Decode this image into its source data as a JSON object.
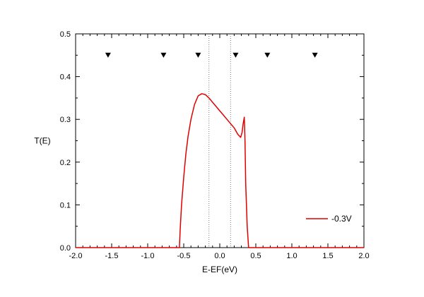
{
  "chart_data": {
    "type": "line",
    "xlabel": "E-EF(eV)",
    "ylabel": "T(E)",
    "xlim": [
      -2.0,
      2.0
    ],
    "ylim": [
      0.0,
      0.5
    ],
    "x_ticks": [
      "-2.0",
      "-1.5",
      "-1.0",
      "-0.5",
      "0.0",
      "0.5",
      "1.0",
      "1.5",
      "2.0"
    ],
    "y_ticks": [
      "0.0",
      "0.1",
      "0.2",
      "0.3",
      "0.4",
      "0.5"
    ],
    "series": [
      {
        "name": "-0.3V",
        "color": "#e00000",
        "x": [
          -2.0,
          -0.56,
          -0.55,
          -0.53,
          -0.5,
          -0.47,
          -0.44,
          -0.4,
          -0.35,
          -0.3,
          -0.25,
          -0.2,
          -0.15,
          -0.1,
          -0.05,
          0.0,
          0.05,
          0.1,
          0.15,
          0.2,
          0.25,
          0.29,
          0.31,
          0.325,
          0.34,
          0.35,
          0.36,
          0.38,
          0.4,
          2.0
        ],
        "y": [
          0.0,
          0.0,
          0.04,
          0.1,
          0.165,
          0.22,
          0.26,
          0.3,
          0.335,
          0.355,
          0.36,
          0.358,
          0.35,
          0.34,
          0.33,
          0.32,
          0.31,
          0.3,
          0.29,
          0.28,
          0.265,
          0.258,
          0.27,
          0.29,
          0.305,
          0.25,
          0.15,
          0.05,
          0.0,
          0.0
        ]
      }
    ],
    "markers": {
      "symbol": "down-triangle",
      "x": [
        -1.55,
        -0.78,
        -0.3,
        0.22,
        0.66,
        1.32
      ],
      "y": [
        0.45,
        0.45,
        0.45,
        0.45,
        0.45,
        0.45
      ]
    },
    "vertical_dotted_lines": [
      -0.15,
      0.15
    ],
    "legend": {
      "placement": "bottom-right"
    },
    "grid": false
  }
}
